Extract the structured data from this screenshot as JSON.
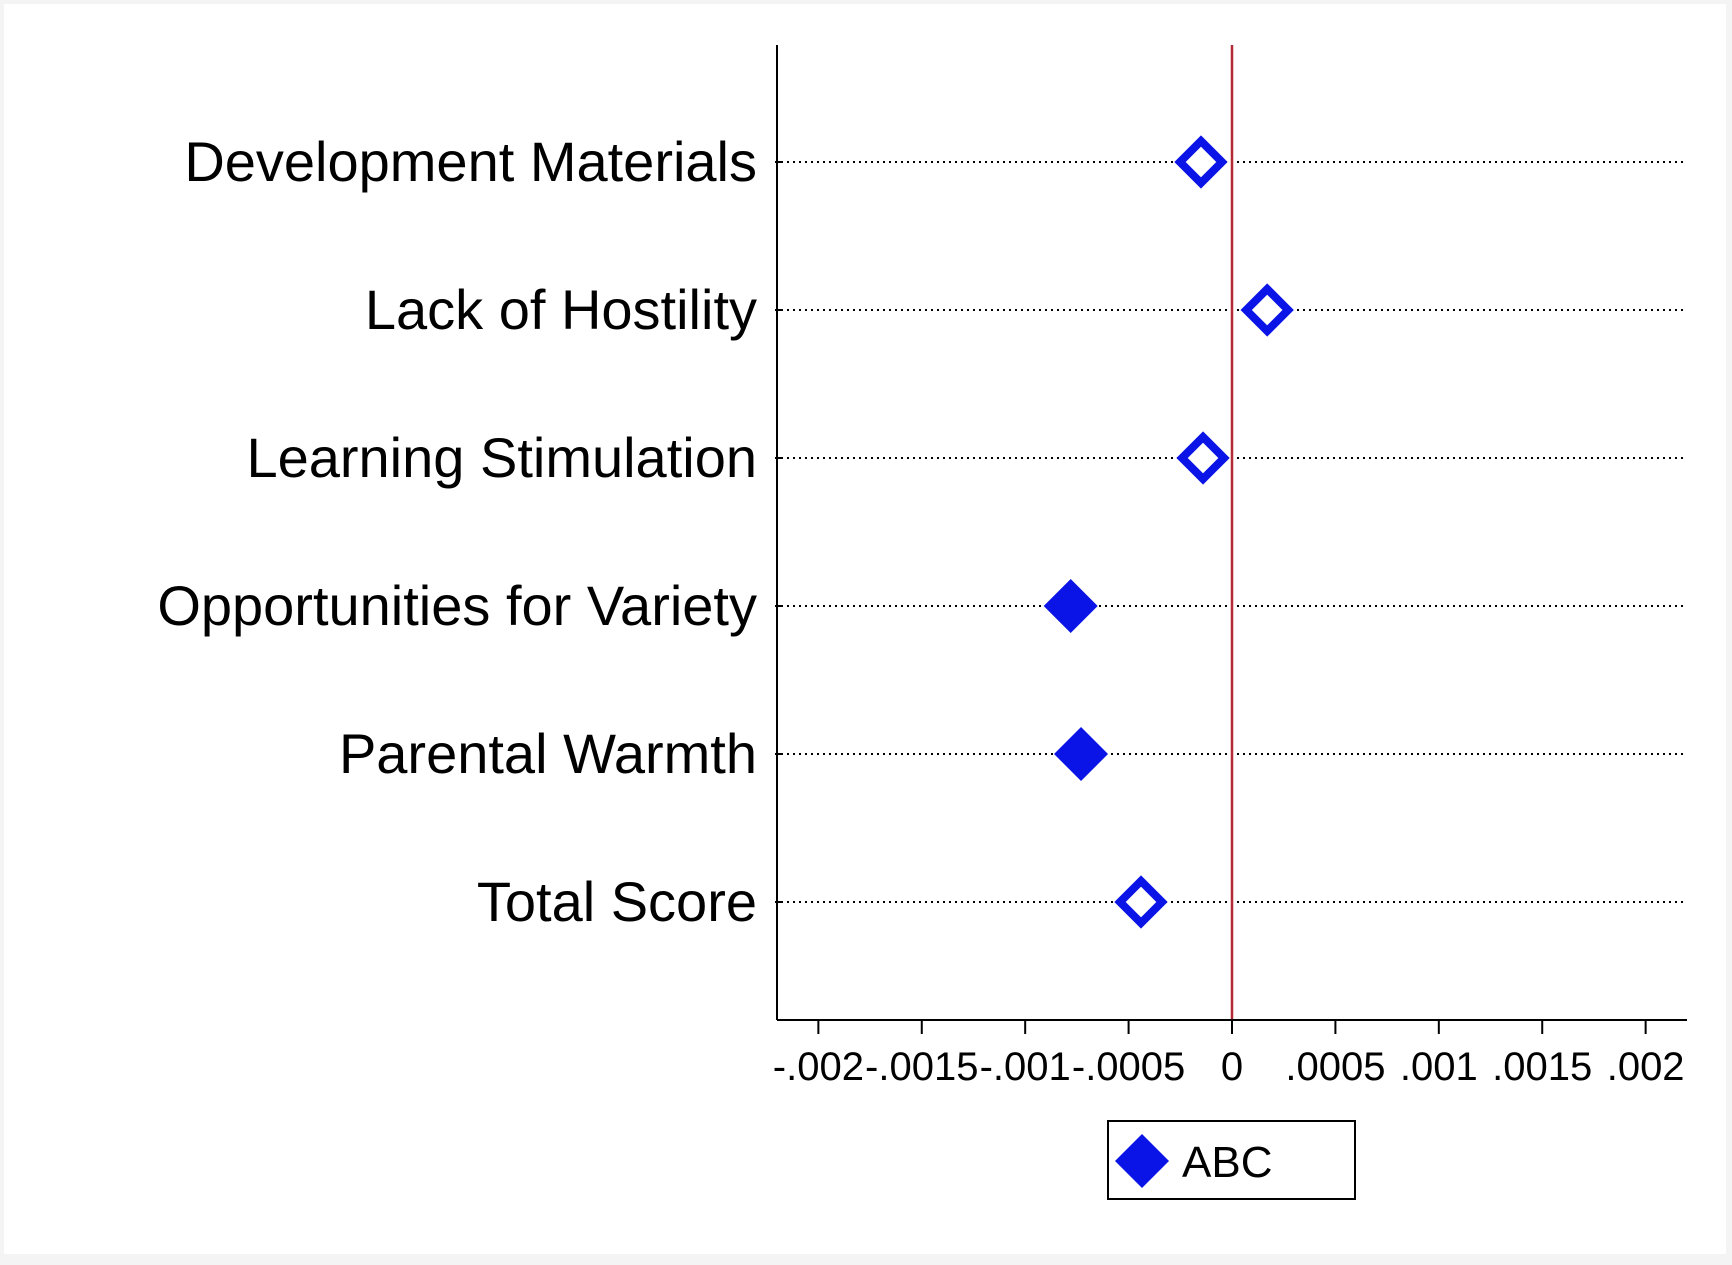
{
  "chart_data": {
    "type": "scatter",
    "title": "",
    "xlabel": "",
    "ylabel": "",
    "xlim": [
      -0.0022,
      0.0022
    ],
    "xticks": [
      {
        "value": -0.002,
        "label": "-.002"
      },
      {
        "value": -0.0015,
        "label": "-.0015"
      },
      {
        "value": -0.001,
        "label": "-.001"
      },
      {
        "value": -0.0005,
        "label": "-.0005"
      },
      {
        "value": 0,
        "label": "0"
      },
      {
        "value": 0.0005,
        "label": ".0005"
      },
      {
        "value": 0.001,
        "label": ".001"
      },
      {
        "value": 0.0015,
        "label": ".0015"
      },
      {
        "value": 0.002,
        "label": ".002"
      }
    ],
    "categories": [
      "Development Materials",
      "Lack of Hostility",
      "Learning Stimulation",
      "Opportunities for Variety",
      "Parental Warmth",
      "Total Score"
    ],
    "series": [
      {
        "name": "ABC",
        "color": "#0a14e6",
        "values": [
          -0.00015,
          0.00017,
          -0.00014,
          -0.00078,
          -0.00073,
          -0.00044
        ],
        "significant": [
          false,
          false,
          false,
          true,
          true,
          false
        ]
      }
    ],
    "reference_line": {
      "x": 0,
      "color": "#b22a35"
    },
    "grid": true,
    "legend": "bottom-center"
  }
}
